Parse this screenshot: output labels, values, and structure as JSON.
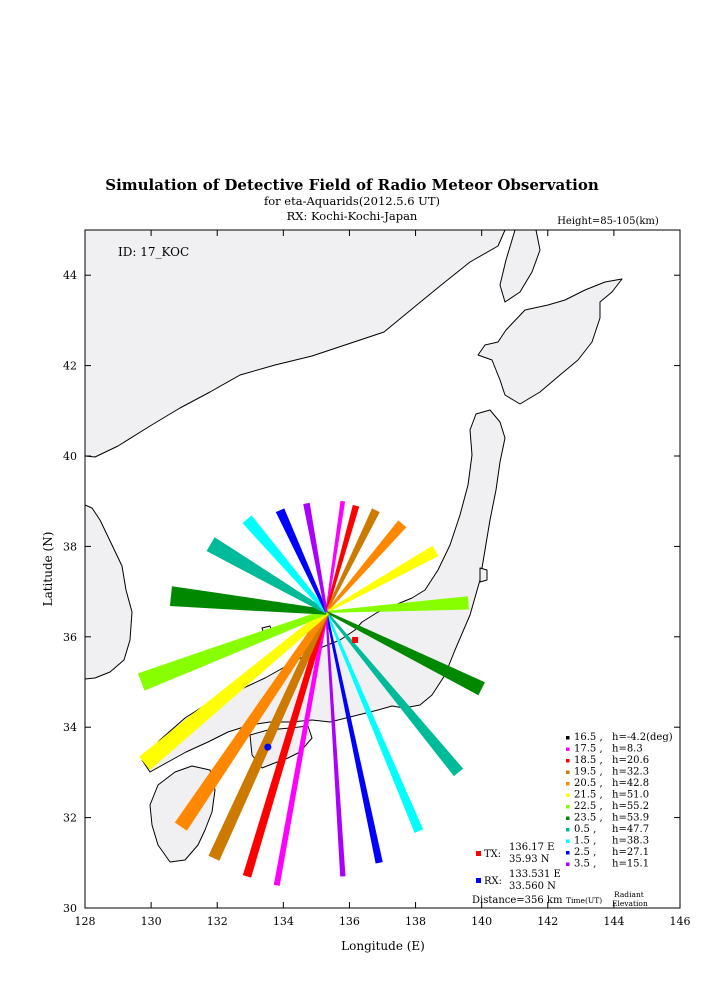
{
  "chart_data": {
    "type": "map",
    "title": "Simulation of Detective Field of Radio Meteor Observation",
    "subtitle1": "for eta-Aquarids(2012.5.6 UT)",
    "subtitle2": "RX: Kochi-Kochi-Japan",
    "height_label": "Height=85-105(km)",
    "id_label": "ID: 17_KOC",
    "xlabel": "Longitude (E)",
    "ylabel": "Latitude (N)",
    "xlim": [
      128,
      146
    ],
    "ylim": [
      30,
      45
    ],
    "xticks": [
      "128",
      "130",
      "132",
      "134",
      "136",
      "138",
      "140",
      "142",
      "144",
      "146"
    ],
    "yticks": [
      "30",
      "32",
      "34",
      "36",
      "38",
      "40",
      "42",
      "44"
    ],
    "convergence": {
      "lon": 135.3,
      "lat": 36.55
    },
    "tx": {
      "label": "TX:",
      "lon_text": "136.17 E",
      "lat_text": "35.93 N",
      "lon": 136.17,
      "lat": 35.93,
      "color": "#ff0000"
    },
    "rx": {
      "label": "RX:",
      "lon_text": "133.531 E",
      "lat_text": "33.560 N",
      "lon": 133.531,
      "lat": 33.56,
      "color": "#0000ff"
    },
    "distance": "Distance=356 km",
    "legend_footer": {
      "time": "Time(UT)",
      "radiant": "Radiant",
      "elevation": "Elevation"
    },
    "series": [
      {
        "time": "16.5",
        "elev": "h=-4.2(deg)",
        "color": "#000000",
        "end": null,
        "wn": 0,
        "wf": 0
      },
      {
        "time": "17.5",
        "elev": "h=8.3",
        "color": "#ff00ff",
        "end": [
          133.8,
          30.5
        ],
        "wn": 0.06,
        "wf": 0.09
      },
      {
        "time": "18.5",
        "elev": "h=20.6",
        "color": "#ff0000",
        "end": [
          132.9,
          30.7
        ],
        "wn": 0.08,
        "wf": 0.13
      },
      {
        "time": "19.5",
        "elev": "h=32.3",
        "color": "#cc7a00",
        "end": [
          131.9,
          31.1
        ],
        "wn": 0.1,
        "wf": 0.18
      },
      {
        "time": "20.5",
        "elev": "h=42.8",
        "color": "#ff8800",
        "end": [
          130.9,
          31.8
        ],
        "wn": 0.1,
        "wf": 0.22
      },
      {
        "time": "21.5",
        "elev": "h=51.0",
        "color": "#ffff00",
        "end": [
          129.8,
          33.2
        ],
        "wn": 0.1,
        "wf": 0.26
      },
      {
        "time": "22.5",
        "elev": "h=55.2",
        "color": "#88ff00",
        "end": [
          129.7,
          35.0
        ],
        "wn": 0.08,
        "wf": 0.28
      },
      {
        "time": "23.5",
        "elev": "h=53.9",
        "color": "#008800",
        "end": [
          130.6,
          36.9
        ],
        "wn": 0.08,
        "wf": 0.3
      },
      {
        "time": "0.5",
        "elev": "h=47.7",
        "color": "#00bb99",
        "end": [
          131.8,
          38.05
        ],
        "wn": 0.06,
        "wf": 0.24
      },
      {
        "time": "1.5",
        "elev": "h=38.3",
        "color": "#00ffff",
        "end": [
          132.9,
          38.6
        ],
        "wn": 0.05,
        "wf": 0.18
      },
      {
        "time": "2.5",
        "elev": "h=27.1",
        "color": "#0000ff",
        "end": [
          133.9,
          38.8
        ],
        "wn": 0.04,
        "wf": 0.14
      },
      {
        "time": "3.5",
        "elev": "h=15.1",
        "color": "#aa00ff",
        "end": [
          134.7,
          38.95
        ],
        "wn": 0.04,
        "wf": 0.1
      }
    ],
    "opposite_tails": [
      {
        "color": "#ff00ff",
        "end": [
          135.8,
          39.0
        ],
        "wf": 0.07
      },
      {
        "color": "#ff0000",
        "end": [
          136.2,
          38.9
        ],
        "wf": 0.1
      },
      {
        "color": "#cc7a00",
        "end": [
          136.8,
          38.8
        ],
        "wf": 0.13
      },
      {
        "color": "#ff8800",
        "end": [
          137.6,
          38.5
        ],
        "wf": 0.16
      },
      {
        "color": "#ffff00",
        "end": [
          138.6,
          37.9
        ],
        "wf": 0.18
      },
      {
        "color": "#88ff00",
        "end": [
          139.6,
          36.75
        ],
        "wf": 0.2
      },
      {
        "color": "#008800",
        "end": [
          140.0,
          34.85
        ],
        "wf": 0.22
      },
      {
        "color": "#00bb99",
        "end": [
          139.3,
          33.0
        ],
        "wf": 0.18
      },
      {
        "color": "#00ffff",
        "end": [
          138.1,
          31.7
        ],
        "wf": 0.14
      },
      {
        "color": "#0000ff",
        "end": [
          136.9,
          31.0
        ],
        "wf": 0.11
      },
      {
        "color": "#aa00ff",
        "end": [
          135.8,
          30.7
        ],
        "wf": 0.08
      }
    ]
  }
}
